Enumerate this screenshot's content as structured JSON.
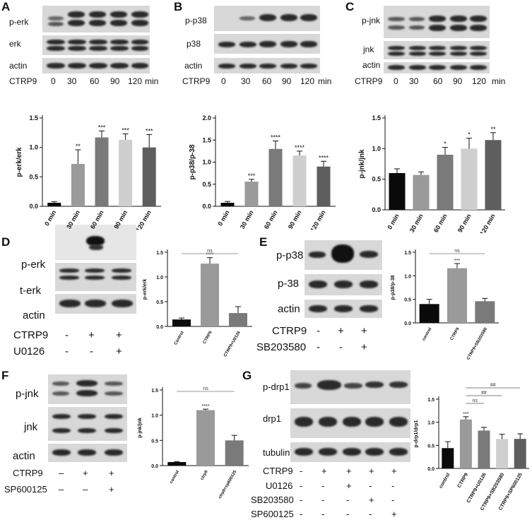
{
  "panels": {
    "A": {
      "letter": "A",
      "blot_labels": [
        "p-erk",
        "erk",
        "actin"
      ],
      "treatment": "CTRP9",
      "lanes": [
        "0",
        "30",
        "60",
        "90",
        "120"
      ],
      "unit": "min"
    },
    "B": {
      "letter": "B",
      "blot_labels": [
        "p-p38",
        "p38",
        "actin"
      ],
      "treatment": "CTRP9",
      "lanes": [
        "0",
        "30",
        "60",
        "90",
        "120"
      ],
      "unit": "min"
    },
    "C": {
      "letter": "C",
      "blot_labels": [
        "p-jnk",
        "jnk",
        "actin"
      ],
      "treatment": "CTRP9",
      "lanes": [
        "0",
        "30",
        "60",
        "90",
        "120"
      ],
      "unit": "min"
    },
    "D": {
      "letter": "D",
      "blot_labels": [
        "p-erk",
        "t-erk",
        "actin"
      ],
      "conditions": [
        {
          "name": "CTRP9",
          "signs": [
            "-",
            "+",
            "+"
          ]
        },
        {
          "name": "U0126",
          "signs": [
            "-",
            "-",
            "+"
          ]
        }
      ]
    },
    "E": {
      "letter": "E",
      "blot_labels": [
        "p-p38",
        "p-38",
        "actin"
      ],
      "conditions": [
        {
          "name": "CTRP9",
          "signs": [
            "-",
            "+",
            "+"
          ]
        },
        {
          "name": "SB203580",
          "signs": [
            "-",
            "-",
            "+"
          ]
        }
      ]
    },
    "F": {
      "letter": "F",
      "blot_labels": [
        "p-jnk",
        "jnk",
        "actin"
      ],
      "conditions": [
        {
          "name": "CTRP9",
          "signs": [
            "–",
            "+",
            "+"
          ]
        },
        {
          "name": "SP600125",
          "signs": [
            "–",
            "–",
            "+"
          ]
        }
      ]
    },
    "G": {
      "letter": "G",
      "blot_labels": [
        "p-drp1",
        "drp1",
        "tubulin"
      ],
      "conditions": [
        {
          "name": "CTRP9",
          "signs": [
            "-",
            "+",
            "+",
            "+",
            "+"
          ]
        },
        {
          "name": "U0126",
          "signs": [
            "-",
            "-",
            "+",
            "-",
            "-"
          ]
        },
        {
          "name": "SB203580",
          "signs": [
            "-",
            "-",
            "-",
            "+",
            "-"
          ]
        },
        {
          "name": "SP600125",
          "signs": [
            "-",
            "-",
            "-",
            "-",
            "+"
          ]
        }
      ]
    }
  },
  "chart_data": [
    {
      "id": "A",
      "type": "bar",
      "ylabel": "p-erk/erk",
      "categories": [
        "0 min",
        "30 min",
        "60 min",
        "90 min",
        "120 min"
      ],
      "values": [
        0.06,
        0.72,
        1.17,
        1.13,
        1.0
      ],
      "errors": [
        0.02,
        0.24,
        0.11,
        0.1,
        0.22
      ],
      "annotations": [
        "",
        "**",
        "***",
        "***",
        "***"
      ],
      "colors": [
        "#0a0a0a",
        "#9a9a9a",
        "#7a7a7a",
        "#cfcfcf",
        "#5e5e5e"
      ],
      "ylim": [
        0,
        1.5
      ],
      "yticks": [
        "0.0",
        "0.5",
        "1.0",
        "1.5"
      ]
    },
    {
      "id": "B",
      "type": "bar",
      "ylabel": "p-p38/p-38",
      "categories": [
        "0 min",
        "30 min",
        "60 min",
        "90 min",
        "120 min"
      ],
      "values": [
        0.08,
        0.56,
        1.3,
        1.15,
        0.9
      ],
      "errors": [
        0.03,
        0.05,
        0.18,
        0.1,
        0.12
      ],
      "annotations": [
        "",
        "***",
        "****",
        "****",
        "****"
      ],
      "colors": [
        "#0a0a0a",
        "#9a9a9a",
        "#7a7a7a",
        "#cfcfcf",
        "#5e5e5e"
      ],
      "ylim": [
        0,
        2.0
      ],
      "yticks": [
        "0.0",
        "0.5",
        "1.0",
        "1.5",
        "2.0"
      ]
    },
    {
      "id": "C",
      "type": "bar",
      "ylabel": "p-jnk/jnk",
      "categories": [
        "0 min",
        "30 min",
        "60 min",
        "90 min",
        "120 min"
      ],
      "values": [
        0.6,
        0.57,
        0.9,
        1.0,
        1.14
      ],
      "errors": [
        0.07,
        0.05,
        0.12,
        0.17,
        0.12
      ],
      "annotations": [
        "",
        "",
        "*",
        "*",
        "**"
      ],
      "colors": [
        "#0a0a0a",
        "#9a9a9a",
        "#7a7a7a",
        "#cfcfcf",
        "#5e5e5e"
      ],
      "ylim": [
        0,
        1.5
      ],
      "yticks": [
        "0.0",
        "0.5",
        "1.0",
        "1.5"
      ]
    },
    {
      "id": "D",
      "type": "bar",
      "ylabel": "p-erk/erk",
      "categories": [
        "Control",
        "CTRP9",
        "CTRP9+U0126"
      ],
      "values": [
        0.14,
        1.27,
        0.27
      ],
      "errors": [
        0.03,
        0.12,
        0.13
      ],
      "annotations": [
        "",
        "****",
        ""
      ],
      "bracket": "ns",
      "colors": [
        "#0a0a0a",
        "#9a9a9a",
        "#7a7a7a"
      ],
      "ylim": [
        0,
        1.5
      ],
      "yticks": [
        "0.0",
        "0.5",
        "1.0",
        "1.5"
      ]
    },
    {
      "id": "E",
      "type": "bar",
      "ylabel": "p-p38/p-38",
      "categories": [
        "control",
        "CTRP9",
        "CTRP9+SB203580"
      ],
      "values": [
        0.4,
        1.16,
        0.46
      ],
      "errors": [
        0.1,
        0.1,
        0.06
      ],
      "annotations": [
        "",
        "***",
        ""
      ],
      "bracket": "ns",
      "colors": [
        "#0a0a0a",
        "#9a9a9a",
        "#7a7a7a"
      ],
      "ylim": [
        0,
        1.5
      ],
      "yticks": [
        "0.0",
        "0.5",
        "1.0",
        "1.5"
      ]
    },
    {
      "id": "F",
      "type": "bar",
      "ylabel": "p-jnk/jnk",
      "categories": [
        "control",
        "ctrp9",
        "ctrp9+sp600125"
      ],
      "values": [
        0.07,
        1.1,
        0.5
      ],
      "errors": [
        0.01,
        0.02,
        0.1
      ],
      "annotations": [
        "",
        "****",
        ""
      ],
      "bracket": "ns",
      "colors": [
        "#0a0a0a",
        "#9a9a9a",
        "#7a7a7a"
      ],
      "ylim": [
        0,
        1.5
      ],
      "yticks": [
        "0.0",
        "0.5",
        "1.0",
        "1.5"
      ]
    },
    {
      "id": "G",
      "type": "bar",
      "ylabel": "p-drp1/drp1",
      "categories": [
        "control",
        "CTRP9",
        "CTRP9+U0126",
        "CTRP9+SB203580",
        "CTRP9+SP600125"
      ],
      "values": [
        0.44,
        1.06,
        0.82,
        0.64,
        0.64
      ],
      "errors": [
        0.14,
        0.06,
        0.07,
        0.1,
        0.11
      ],
      "annotations": [
        "",
        "***",
        "",
        "",
        ""
      ],
      "brackets": [
        "ns",
        "##",
        "##"
      ],
      "colors": [
        "#0a0a0a",
        "#9a9a9a",
        "#7a7a7a",
        "#cfcfcf",
        "#5e5e5e"
      ],
      "ylim": [
        0,
        1.5
      ],
      "yticks": [
        "0.0",
        "0.5",
        "1.0",
        "1.5"
      ]
    }
  ]
}
